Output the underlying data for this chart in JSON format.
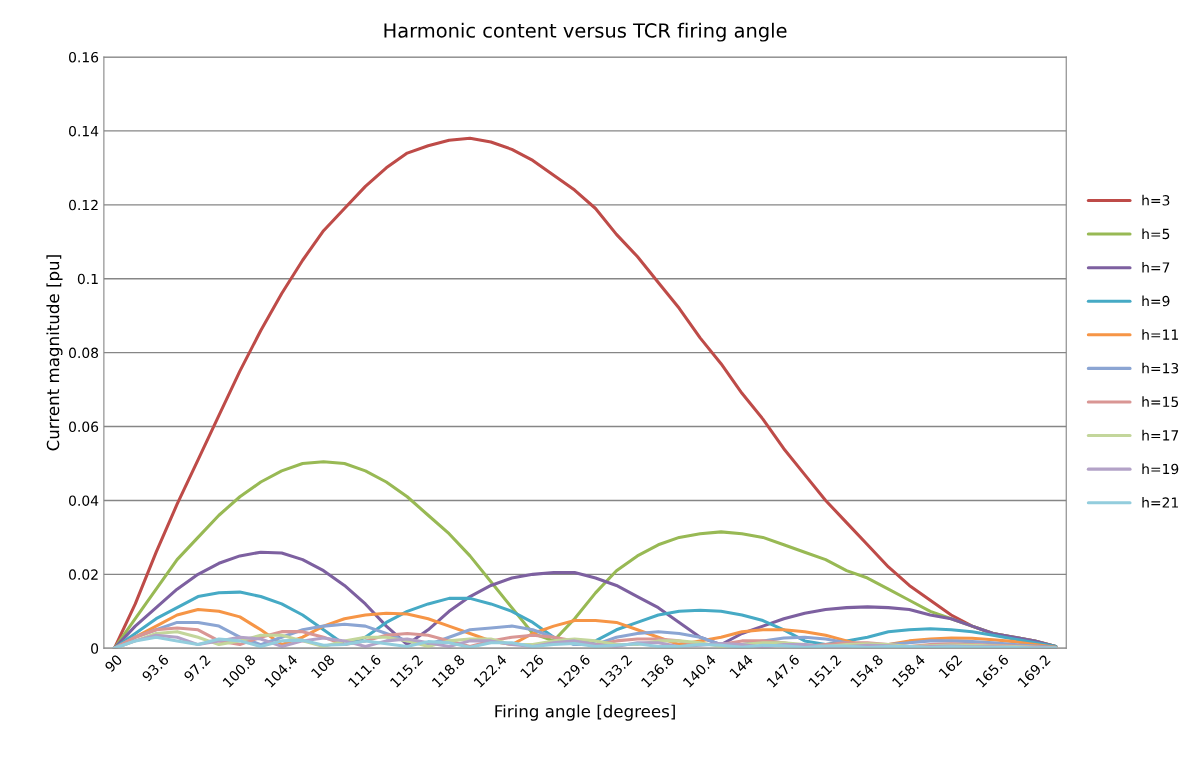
{
  "chart_data": {
    "type": "line",
    "title": "Harmonic content versus TCR firing angle",
    "xlabel": "Firing angle [degrees]",
    "ylabel": "Current magnitude [pu]",
    "x": [
      90,
      91.8,
      93.6,
      95.4,
      97.2,
      99,
      100.8,
      102.6,
      104.4,
      106.2,
      108,
      109.8,
      111.6,
      113.4,
      115.2,
      117,
      118.8,
      120.6,
      122.4,
      124.2,
      126,
      127.8,
      129.6,
      131.4,
      133.2,
      135,
      136.8,
      138.6,
      140.4,
      142.2,
      144,
      145.8,
      147.6,
      149.4,
      151.2,
      153,
      154.8,
      156.6,
      158.4,
      160.2,
      162,
      163.8,
      165.6,
      167.4,
      169.2,
      171
    ],
    "xlim": [
      89.1,
      171.9
    ],
    "xticks": [
      90,
      93.6,
      97.2,
      100.8,
      104.4,
      108,
      111.6,
      115.2,
      118.8,
      122.4,
      126,
      129.6,
      133.2,
      136.8,
      140.4,
      144,
      147.6,
      151.2,
      154.8,
      158.4,
      162,
      165.6,
      169.2
    ],
    "ylim": [
      0,
      0.16
    ],
    "yticks": [
      0,
      0.02,
      0.04,
      0.06,
      0.08,
      0.1,
      0.12,
      0.14,
      0.16
    ],
    "grid": "y",
    "legend": "right",
    "marker": "none",
    "line_style": "solid",
    "series": [
      {
        "name": "h=3",
        "color": "#be4b48",
        "values": [
          0,
          0.012,
          0.026,
          0.039,
          0.051,
          0.063,
          0.075,
          0.086,
          0.096,
          0.105,
          0.113,
          0.119,
          0.125,
          0.13,
          0.134,
          0.136,
          0.1375,
          0.138,
          0.137,
          0.135,
          0.132,
          0.128,
          0.124,
          0.119,
          0.112,
          0.106,
          0.099,
          0.092,
          0.084,
          0.077,
          0.069,
          0.062,
          0.054,
          0.047,
          0.04,
          0.034,
          0.028,
          0.022,
          0.017,
          0.013,
          0.009,
          0.006,
          0.004,
          0.003,
          0.002,
          0.0005
        ]
      },
      {
        "name": "h=5",
        "color": "#98b954",
        "values": [
          0,
          0.008,
          0.016,
          0.024,
          0.03,
          0.036,
          0.041,
          0.045,
          0.048,
          0.05,
          0.0505,
          0.05,
          0.048,
          0.045,
          0.041,
          0.036,
          0.031,
          0.025,
          0.018,
          0.011,
          0.004,
          0.002,
          0.008,
          0.015,
          0.021,
          0.025,
          0.028,
          0.03,
          0.031,
          0.0315,
          0.031,
          0.03,
          0.028,
          0.026,
          0.024,
          0.021,
          0.019,
          0.016,
          0.013,
          0.01,
          0.008,
          0.006,
          0.004,
          0.003,
          0.002,
          0.0005
        ]
      },
      {
        "name": "h=7",
        "color": "#7d60a0",
        "values": [
          0,
          0.006,
          0.011,
          0.016,
          0.02,
          0.023,
          0.025,
          0.026,
          0.0258,
          0.024,
          0.021,
          0.017,
          0.012,
          0.006,
          0.001,
          0.005,
          0.01,
          0.014,
          0.017,
          0.019,
          0.02,
          0.0205,
          0.0205,
          0.019,
          0.017,
          0.014,
          0.011,
          0.007,
          0.003,
          0.001,
          0.004,
          0.006,
          0.008,
          0.0095,
          0.0105,
          0.011,
          0.0112,
          0.011,
          0.0105,
          0.009,
          0.008,
          0.006,
          0.004,
          0.003,
          0.002,
          0.0005
        ]
      },
      {
        "name": "h=9",
        "color": "#46aac5",
        "values": [
          0,
          0.004,
          0.008,
          0.011,
          0.014,
          0.015,
          0.0152,
          0.014,
          0.012,
          0.009,
          0.005,
          0.001,
          0.003,
          0.007,
          0.01,
          0.012,
          0.0135,
          0.0135,
          0.012,
          0.01,
          0.007,
          0.003,
          0.001,
          0.002,
          0.005,
          0.007,
          0.009,
          0.01,
          0.0103,
          0.01,
          0.009,
          0.0075,
          0.005,
          0.002,
          0.001,
          0.002,
          0.003,
          0.0045,
          0.005,
          0.0053,
          0.005,
          0.0045,
          0.0035,
          0.0025,
          0.0015,
          0.0005
        ]
      },
      {
        "name": "h=11",
        "color": "#f69546",
        "values": [
          0,
          0.003,
          0.006,
          0.009,
          0.0105,
          0.01,
          0.0085,
          0.005,
          0.001,
          0.003,
          0.006,
          0.008,
          0.009,
          0.0095,
          0.0093,
          0.008,
          0.006,
          0.004,
          0.002,
          0.001,
          0.004,
          0.006,
          0.0075,
          0.0075,
          0.007,
          0.005,
          0.003,
          0.001,
          0.002,
          0.003,
          0.0045,
          0.005,
          0.005,
          0.0045,
          0.0035,
          0.002,
          0.0005,
          0.001,
          0.002,
          0.0025,
          0.0028,
          0.0027,
          0.0023,
          0.0018,
          0.001,
          0.0003
        ]
      },
      {
        "name": "h=13",
        "color": "#8ba5d3",
        "values": [
          0,
          0.003,
          0.005,
          0.007,
          0.007,
          0.006,
          0.003,
          0.001,
          0.003,
          0.005,
          0.006,
          0.0065,
          0.006,
          0.004,
          0.002,
          0.001,
          0.003,
          0.005,
          0.0055,
          0.006,
          0.005,
          0.003,
          0.001,
          0.001,
          0.003,
          0.004,
          0.0045,
          0.004,
          0.003,
          0.001,
          0.001,
          0.002,
          0.0028,
          0.003,
          0.0025,
          0.0015,
          0.0005,
          0.001,
          0.0015,
          0.002,
          0.002,
          0.0018,
          0.0015,
          0.001,
          0.0006,
          0.0002
        ]
      },
      {
        "name": "h=15",
        "color": "#d99694",
        "values": [
          0,
          0.003,
          0.005,
          0.0055,
          0.005,
          0.002,
          0.001,
          0.003,
          0.0045,
          0.0045,
          0.003,
          0.001,
          0.002,
          0.0035,
          0.004,
          0.0035,
          0.002,
          0.0005,
          0.002,
          0.003,
          0.0035,
          0.003,
          0.002,
          0.001,
          0.002,
          0.0025,
          0.0025,
          0.002,
          0.001,
          0.001,
          0.002,
          0.002,
          0.0015,
          0.0005,
          0.001,
          0.0015,
          0.0015,
          0.001,
          0.0005,
          0.001,
          0.0012,
          0.001,
          0.0008,
          0.0006,
          0.0004,
          0.0001
        ]
      },
      {
        "name": "h=17",
        "color": "#c3d69b",
        "values": [
          0,
          0.002,
          0.004,
          0.0045,
          0.003,
          0.001,
          0.002,
          0.0035,
          0.0035,
          0.002,
          0.0005,
          0.002,
          0.003,
          0.003,
          0.002,
          0.0005,
          0.002,
          0.0025,
          0.0025,
          0.001,
          0.001,
          0.002,
          0.0025,
          0.002,
          0.001,
          0.001,
          0.002,
          0.002,
          0.0015,
          0.0005,
          0.001,
          0.0015,
          0.0015,
          0.001,
          0.0005,
          0.001,
          0.0012,
          0.001,
          0.0005,
          0.0007,
          0.0009,
          0.0008,
          0.0006,
          0.0005,
          0.0003,
          0.0001
        ]
      },
      {
        "name": "h=19",
        "color": "#b3a2c7",
        "values": [
          0,
          0.002,
          0.0035,
          0.003,
          0.001,
          0.002,
          0.003,
          0.0025,
          0.0005,
          0.002,
          0.0028,
          0.002,
          0.0005,
          0.002,
          0.0025,
          0.0015,
          0.0005,
          0.002,
          0.002,
          0.001,
          0.0005,
          0.0015,
          0.002,
          0.001,
          0.0005,
          0.0015,
          0.0015,
          0.0005,
          0.0008,
          0.0013,
          0.001,
          0.0003,
          0.001,
          0.001,
          0.0005,
          0.0005,
          0.0008,
          0.0007,
          0.0003,
          0.0005,
          0.0006,
          0.0004,
          0.0004,
          0.0003,
          0.0002,
          0.0001
        ]
      },
      {
        "name": "h=21",
        "color": "#93cddd",
        "values": [
          0,
          0.002,
          0.003,
          0.002,
          0.001,
          0.0025,
          0.002,
          0.0005,
          0.002,
          0.0022,
          0.0008,
          0.001,
          0.002,
          0.0012,
          0.0005,
          0.0018,
          0.0015,
          0.0003,
          0.0015,
          0.0015,
          0.0005,
          0.001,
          0.0013,
          0.0005,
          0.0008,
          0.0012,
          0.0005,
          0.0005,
          0.001,
          0.0008,
          0.0003,
          0.0008,
          0.0007,
          0.0002,
          0.0006,
          0.0006,
          0.0002,
          0.0005,
          0.0005,
          0.0002,
          0.0004,
          0.0003,
          0.0002,
          0.0002,
          0.0001,
          0.0001
        ]
      }
    ]
  }
}
